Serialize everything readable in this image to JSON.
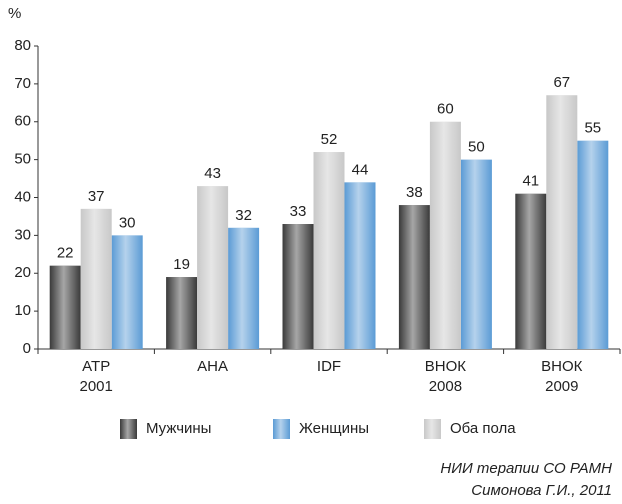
{
  "chart_data": {
    "type": "bar",
    "y_label": "%",
    "categories": [
      "ATP 2001",
      "AHA",
      "IDF",
      "ВНОК 2008",
      "ВНОК 2009"
    ],
    "series": [
      {
        "name": "Мужчины",
        "color": "#3a3a3a",
        "values": [
          22,
          19,
          33,
          38,
          41
        ]
      },
      {
        "name": "Женщины",
        "color": "#5b9bd5",
        "values": [
          30,
          32,
          44,
          50,
          55
        ]
      },
      {
        "name": "Оба пола",
        "color": "#c8c8c8",
        "values": [
          37,
          43,
          52,
          60,
          67
        ]
      }
    ],
    "ylim": [
      0,
      80
    ],
    "yticks": [
      0,
      10,
      20,
      30,
      40,
      50,
      60,
      70,
      80
    ],
    "source": [
      "НИИ терапии СО РАМН",
      "Симонова Г.И., 2011"
    ]
  }
}
